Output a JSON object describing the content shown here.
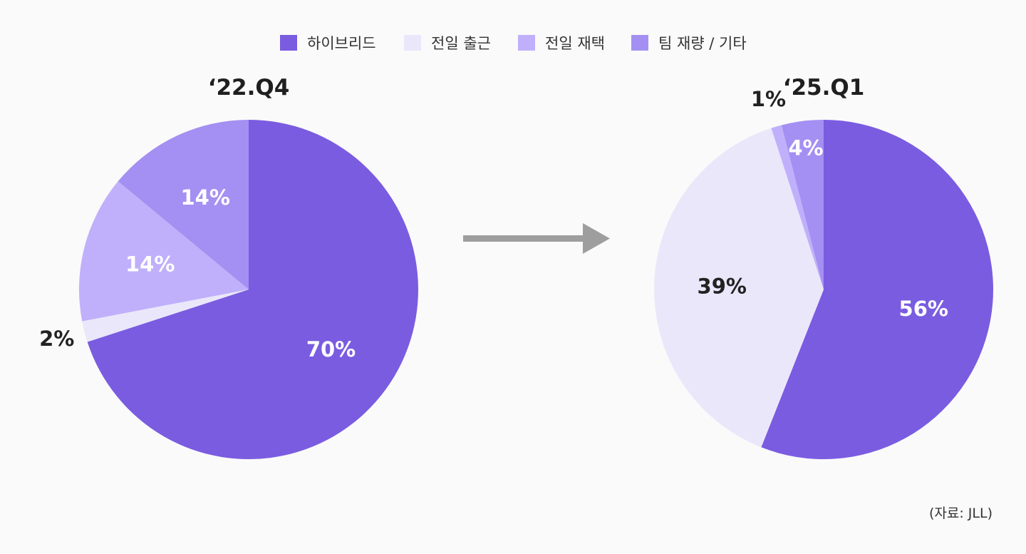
{
  "legend": [
    {
      "label": "하이브리드",
      "color": "#7a5ce0"
    },
    {
      "label": "전일 출근",
      "color": "#ebe7fb"
    },
    {
      "label": "전일 재택",
      "color": "#c0b0fb"
    },
    {
      "label": "팀 재량 / 기타",
      "color": "#a490f2"
    }
  ],
  "source": "(자료: JLL)",
  "chart_data": [
    {
      "type": "pie",
      "title": "‘22.Q4",
      "start_angle_deg": 0,
      "direction": "clockwise",
      "slices": [
        {
          "category": "하이브리드",
          "value": 70,
          "label": "70%",
          "color": "#7a5ce0",
          "label_style": "light"
        },
        {
          "category": "전일 출근",
          "value": 2,
          "label": "2%",
          "color": "#ebe7fb",
          "label_style": "dark",
          "label_outside": true
        },
        {
          "category": "전일 재택",
          "value": 14,
          "label": "14%",
          "color": "#c0b0fb",
          "label_style": "light"
        },
        {
          "category": "팀 재량 / 기타",
          "value": 14,
          "label": "14%",
          "color": "#a490f2",
          "label_style": "light"
        }
      ]
    },
    {
      "type": "pie",
      "title": "‘25.Q1",
      "start_angle_deg": 0,
      "direction": "clockwise",
      "slices": [
        {
          "category": "하이브리드",
          "value": 56,
          "label": "56%",
          "color": "#7a5ce0",
          "label_style": "light"
        },
        {
          "category": "전일 출근",
          "value": 39,
          "label": "39%",
          "color": "#ebe7fb",
          "label_style": "dark"
        },
        {
          "category": "전일 재택",
          "value": 1,
          "label": "1%",
          "color": "#c0b0fb",
          "label_style": "dark",
          "label_outside": true
        },
        {
          "category": "팀 재량 / 기타",
          "value": 4,
          "label": "4%",
          "color": "#a490f2",
          "label_style": "light"
        }
      ]
    }
  ],
  "arrow_color": "#9e9e9e"
}
